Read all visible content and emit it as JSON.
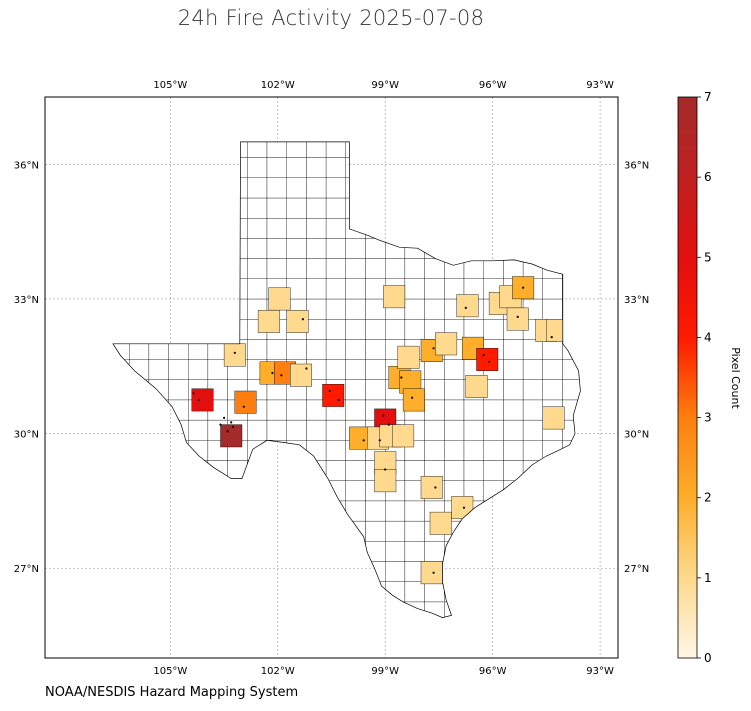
{
  "title": "24h Fire Activity 2025-07-08",
  "source": "NOAA/NESDIS Hazard Mapping System",
  "colorbar": {
    "label": "Pixel Count",
    "min": 0,
    "max": 7,
    "ticks": [
      "0",
      "1",
      "2",
      "3",
      "4",
      "5",
      "6",
      "7"
    ],
    "stops": [
      "#fff7e6",
      "#fed98e",
      "#fdae2a",
      "#fe7f0f",
      "#ff1a00",
      "#e30f0f",
      "#c02020",
      "#a52a2a"
    ]
  },
  "chart_data": {
    "type": "choropleth",
    "region": "Texas counties",
    "lon_range": [
      -108.5,
      -92.5
    ],
    "lat_range": [
      25.0,
      37.5
    ],
    "lon_ticks": [
      "105°W",
      "102°W",
      "99°W",
      "96°W",
      "93°W"
    ],
    "lat_ticks": [
      "36°N",
      "33°N",
      "30°N",
      "27°N"
    ],
    "grid": true,
    "counties": [
      {
        "lon": -104.1,
        "lat": 30.75,
        "value": 5
      },
      {
        "lon": -103.3,
        "lat": 29.95,
        "value": 7
      },
      {
        "lon": -102.9,
        "lat": 30.7,
        "value": 3
      },
      {
        "lon": -102.2,
        "lat": 31.35,
        "value": 2
      },
      {
        "lon": -101.8,
        "lat": 31.35,
        "value": 3
      },
      {
        "lon": -101.35,
        "lat": 31.3,
        "value": 1
      },
      {
        "lon": -100.45,
        "lat": 30.85,
        "value": 4
      },
      {
        "lon": -99.0,
        "lat": 30.3,
        "value": 5
      },
      {
        "lon": -99.7,
        "lat": 29.9,
        "value": 2
      },
      {
        "lon": -99.2,
        "lat": 29.9,
        "value": 1
      },
      {
        "lon": -98.85,
        "lat": 29.95,
        "value": 1
      },
      {
        "lon": -99.0,
        "lat": 29.35,
        "value": 1
      },
      {
        "lon": -99.0,
        "lat": 28.95,
        "value": 1
      },
      {
        "lon": -98.6,
        "lat": 31.25,
        "value": 2
      },
      {
        "lon": -98.3,
        "lat": 31.15,
        "value": 2
      },
      {
        "lon": -98.2,
        "lat": 30.75,
        "value": 2
      },
      {
        "lon": -98.35,
        "lat": 31.7,
        "value": 1
      },
      {
        "lon": -97.7,
        "lat": 31.85,
        "value": 2
      },
      {
        "lon": -97.3,
        "lat": 32.0,
        "value": 1
      },
      {
        "lon": -96.55,
        "lat": 31.9,
        "value": 2
      },
      {
        "lon": -96.15,
        "lat": 31.65,
        "value": 4
      },
      {
        "lon": -96.45,
        "lat": 31.05,
        "value": 1
      },
      {
        "lon": -98.5,
        "lat": 29.95,
        "value": 1
      },
      {
        "lon": -97.7,
        "lat": 28.8,
        "value": 1
      },
      {
        "lon": -97.45,
        "lat": 28.0,
        "value": 1
      },
      {
        "lon": -96.85,
        "lat": 28.35,
        "value": 1
      },
      {
        "lon": -97.7,
        "lat": 26.9,
        "value": 1
      },
      {
        "lon": -102.25,
        "lat": 32.5,
        "value": 1
      },
      {
        "lon": -101.45,
        "lat": 32.5,
        "value": 1
      },
      {
        "lon": -101.95,
        "lat": 33.0,
        "value": 1
      },
      {
        "lon": -103.2,
        "lat": 31.75,
        "value": 1
      },
      {
        "lon": -98.75,
        "lat": 33.05,
        "value": 1
      },
      {
        "lon": -96.7,
        "lat": 32.85,
        "value": 1
      },
      {
        "lon": -95.8,
        "lat": 32.9,
        "value": 1
      },
      {
        "lon": -95.5,
        "lat": 33.05,
        "value": 1
      },
      {
        "lon": -95.15,
        "lat": 33.25,
        "value": 2
      },
      {
        "lon": -95.3,
        "lat": 32.55,
        "value": 1
      },
      {
        "lon": -94.5,
        "lat": 32.3,
        "value": 1
      },
      {
        "lon": -94.2,
        "lat": 32.3,
        "value": 1
      },
      {
        "lon": -94.3,
        "lat": 30.35,
        "value": 1
      }
    ],
    "fire_points": [
      {
        "lon": -104.2,
        "lat": 30.75
      },
      {
        "lon": -104.35,
        "lat": 30.9
      },
      {
        "lon": -103.5,
        "lat": 30.35
      },
      {
        "lon": -103.3,
        "lat": 30.25
      },
      {
        "lon": -103.25,
        "lat": 30.15
      },
      {
        "lon": -103.4,
        "lat": 30.05
      },
      {
        "lon": -103.6,
        "lat": 30.2
      },
      {
        "lon": -102.95,
        "lat": 30.6
      },
      {
        "lon": -102.15,
        "lat": 31.35
      },
      {
        "lon": -101.9,
        "lat": 31.3
      },
      {
        "lon": -101.2,
        "lat": 31.45
      },
      {
        "lon": -100.55,
        "lat": 30.95
      },
      {
        "lon": -100.3,
        "lat": 30.75
      },
      {
        "lon": -99.05,
        "lat": 30.4
      },
      {
        "lon": -98.9,
        "lat": 30.2
      },
      {
        "lon": -99.6,
        "lat": 29.85
      },
      {
        "lon": -99.15,
        "lat": 29.85
      },
      {
        "lon": -99.0,
        "lat": 29.2
      },
      {
        "lon": -98.55,
        "lat": 31.25
      },
      {
        "lon": -98.25,
        "lat": 30.8
      },
      {
        "lon": -97.65,
        "lat": 31.9
      },
      {
        "lon": -96.25,
        "lat": 31.75
      },
      {
        "lon": -96.1,
        "lat": 31.6
      },
      {
        "lon": -97.6,
        "lat": 28.8
      },
      {
        "lon": -96.8,
        "lat": 28.35
      },
      {
        "lon": -97.65,
        "lat": 26.9
      },
      {
        "lon": -103.2,
        "lat": 31.8
      },
      {
        "lon": -101.3,
        "lat": 32.55
      },
      {
        "lon": -96.75,
        "lat": 32.8
      },
      {
        "lon": -95.15,
        "lat": 33.25
      },
      {
        "lon": -95.3,
        "lat": 32.6
      },
      {
        "lon": -94.35,
        "lat": 32.15
      }
    ]
  }
}
